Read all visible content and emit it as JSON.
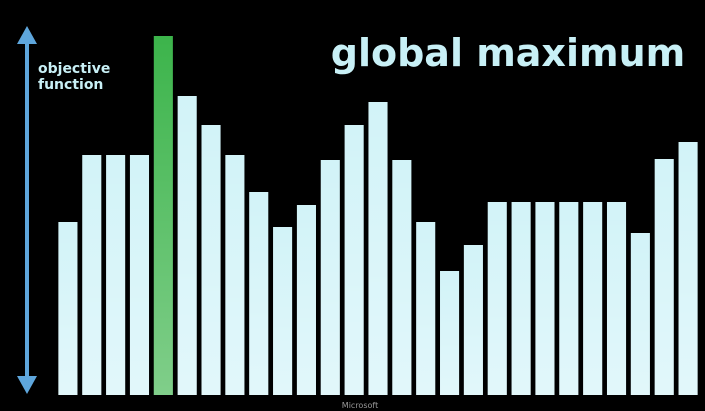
{
  "chart_data": {
    "type": "bar",
    "title": "global maximum",
    "annotation": [
      "objective",
      "function"
    ],
    "footer": "Microsoft",
    "categories": [
      null,
      null,
      null,
      null,
      null,
      null,
      null,
      null,
      null,
      null,
      null,
      null,
      null,
      null,
      null,
      null,
      null,
      null,
      null,
      null,
      null,
      null,
      null,
      null,
      null,
      null,
      null
    ],
    "values": [
      173,
      240,
      240,
      240,
      359,
      299,
      270,
      240,
      203,
      168,
      190,
      235,
      270,
      293,
      235,
      173,
      124,
      150,
      193,
      193,
      193,
      193,
      193,
      193,
      162,
      236,
      253
    ],
    "colors": [
      "#d2f3f8",
      "#d2f3f8",
      "#d2f3f8",
      "#d2f3f8",
      "#3cb44b",
      "#d2f3f8",
      "#d2f3f8",
      "#d2f3f8",
      "#d2f3f8",
      "#d2f3f8",
      "#d2f3f8",
      "#d2f3f8",
      "#d2f3f8",
      "#d2f3f8",
      "#d2f3f8",
      "#d2f3f8",
      "#d2f3f8",
      "#d2f3f8",
      "#d2f3f8",
      "#d2f3f8",
      "#d2f3f8",
      "#d2f3f8",
      "#d2f3f8",
      "#d2f3f8",
      "#d2f3f8",
      "#d2f3f8",
      "#d2f3f8"
    ],
    "ylim": [
      0,
      360
    ]
  }
}
